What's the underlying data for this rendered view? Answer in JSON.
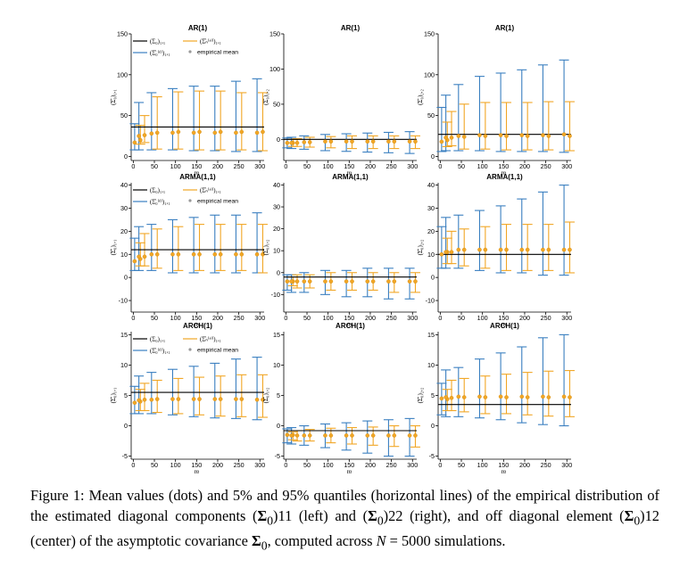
{
  "caption": {
    "label": "Figure 1:",
    "part1": "Mean values (dots) and 5% and 95% quantiles (horizontal lines) of the empirical distribution of the estimated diagonal components (",
    "sigma": "Σ",
    "sub0": "0",
    "sub11": ")11",
    "part2": " (left) and (",
    "sub22": ")22",
    "part3": " (right), and off diagonal element (",
    "sub12": ")12",
    "part4": " (center) of the asymptotic covariance ",
    "part5": ", computed across ",
    "N": "N",
    "part6": " = 5000 simulations."
  },
  "colors": {
    "blue": "#3a7fc0",
    "orange": "#f1a625",
    "black": "#000000",
    "dot": "#f1a625"
  },
  "legend": {
    "true": "(Σ₀)₁,₁",
    "d": "(Σ̂₀⁽ᵈ⁾)₁,₁",
    "al": "(Σ̂ₙ⁽ᵃˡ⁾)₁,₁",
    "mean": "empirical mean"
  },
  "xlabel": "m",
  "chart_data": [
    {
      "type": "errorbar",
      "title": "AR(1)",
      "ylabel": "(Σ̂₀)₁,₁",
      "ylim": [
        -5,
        150
      ],
      "yticks": [
        0,
        50,
        100,
        150
      ],
      "true_value": 36,
      "x": [
        10,
        20,
        50,
        100,
        150,
        200,
        250,
        300
      ],
      "blue": {
        "q05": [
          8,
          8,
          8,
          8,
          7,
          7,
          6,
          6
        ],
        "q95": [
          40,
          66,
          78,
          83,
          86,
          86,
          92,
          95
        ],
        "mean": [
          17,
          25,
          28,
          29,
          29,
          29,
          29,
          29
        ]
      },
      "orange": {
        "q05": [
          15,
          17,
          9,
          9,
          8,
          8,
          8,
          7
        ],
        "q95": [
          38,
          50,
          73,
          79,
          80,
          80,
          78,
          78
        ],
        "mean": [
          20,
          26,
          29,
          30,
          30,
          30,
          30,
          30
        ]
      }
    },
    {
      "type": "errorbar",
      "title": "AR(1)",
      "ylabel": "(Σ̂₀)₁,₂",
      "ylim": [
        -30,
        150
      ],
      "yticks": [
        0,
        50,
        100,
        150
      ],
      "true_value": 0,
      "x": [
        10,
        20,
        50,
        100,
        150,
        200,
        250,
        300
      ],
      "blue": {
        "q05": [
          -12,
          -13,
          -14,
          -16,
          -17,
          -18,
          -19,
          -20
        ],
        "q95": [
          2,
          3,
          5,
          7,
          8,
          9,
          10,
          11
        ],
        "mean": [
          -5,
          -5,
          -4,
          -3,
          -3,
          -3,
          -3,
          -3
        ]
      },
      "orange": {
        "q05": [
          -10,
          -10,
          -11,
          -12,
          -13,
          -13,
          -13,
          -13
        ],
        "q95": [
          0,
          1,
          3,
          4,
          5,
          5,
          5,
          5
        ],
        "mean": [
          -5,
          -5,
          -4,
          -3,
          -3,
          -3,
          -3,
          -3
        ]
      }
    },
    {
      "type": "errorbar",
      "title": "AR(1)",
      "ylabel": "(Σ̂₀)₂,₂",
      "ylim": [
        -5,
        150
      ],
      "yticks": [
        0,
        50,
        100,
        150
      ],
      "true_value": 27,
      "x": [
        10,
        20,
        50,
        100,
        150,
        200,
        250,
        300
      ],
      "blue": {
        "q05": [
          6,
          7,
          7,
          7,
          6,
          6,
          6,
          5
        ],
        "q95": [
          60,
          75,
          88,
          98,
          102,
          106,
          112,
          118
        ],
        "mean": [
          18,
          23,
          25,
          26,
          26,
          26,
          26,
          27
        ]
      },
      "orange": {
        "q05": [
          12,
          13,
          9,
          9,
          8,
          8,
          8,
          7
        ],
        "q95": [
          42,
          55,
          64,
          66,
          66,
          66,
          67,
          67
        ],
        "mean": [
          20,
          23,
          24,
          25,
          25,
          25,
          25,
          25
        ]
      }
    },
    {
      "type": "errorbar",
      "title": "ARMA(1,1)",
      "ylabel": "(Σ̂₀)₁,₁",
      "ylim": [
        -15,
        41
      ],
      "yticks": [
        -10,
        0,
        10,
        20,
        30,
        40
      ],
      "true_value": 12,
      "x": [
        10,
        20,
        50,
        100,
        150,
        200,
        250,
        300
      ],
      "blue": {
        "q05": [
          3,
          3,
          3,
          2,
          2,
          2,
          2,
          2
        ],
        "q95": [
          17,
          22,
          23,
          25,
          26,
          27,
          27,
          28
        ],
        "mean": [
          7,
          9,
          10,
          10,
          10,
          10,
          10,
          10
        ]
      },
      "orange": {
        "q05": [
          5,
          5,
          4,
          3,
          3,
          3,
          3,
          2
        ],
        "q95": [
          15,
          19,
          21,
          22,
          23,
          23,
          23,
          23
        ],
        "mean": [
          8,
          9,
          10,
          10,
          10,
          10,
          10,
          10
        ]
      }
    },
    {
      "type": "errorbar",
      "title": "ARMA(1,1)",
      "ylabel": "(Σ̂₀)₁,₂",
      "ylim": [
        -18,
        41
      ],
      "yticks": [
        -10,
        0,
        10,
        20,
        30,
        40
      ],
      "true_value": -2,
      "x": [
        10,
        20,
        50,
        100,
        150,
        200,
        250,
        300
      ],
      "blue": {
        "q05": [
          -8,
          -9,
          -9,
          -10,
          -11,
          -11,
          -12,
          -12
        ],
        "q95": [
          -1,
          -1,
          0,
          1,
          1,
          2,
          2,
          2
        ],
        "mean": [
          -4,
          -4,
          -4,
          -4,
          -4,
          -4,
          -4,
          -4
        ]
      },
      "orange": {
        "q05": [
          -6,
          -7,
          -7,
          -8,
          -8,
          -8,
          -9,
          -9
        ],
        "q95": [
          -2,
          -1,
          -1,
          0,
          0,
          0,
          0,
          0
        ],
        "mean": [
          -4,
          -4,
          -4,
          -4,
          -4,
          -4,
          -4,
          -4
        ]
      }
    },
    {
      "type": "errorbar",
      "title": "ARMA(1,1)",
      "ylabel": "(Σ̂₀)₂,₂",
      "ylim": [
        -15,
        41
      ],
      "yticks": [
        -10,
        0,
        10,
        20,
        30,
        40
      ],
      "true_value": 10,
      "x": [
        10,
        20,
        50,
        100,
        150,
        200,
        250,
        300
      ],
      "blue": {
        "q05": [
          4,
          4,
          4,
          3,
          2,
          2,
          1,
          1
        ],
        "q95": [
          22,
          26,
          27,
          29,
          31,
          34,
          37,
          40
        ],
        "mean": [
          10,
          11,
          12,
          12,
          12,
          12,
          12,
          12
        ]
      },
      "orange": {
        "q05": [
          6,
          6,
          5,
          4,
          3,
          3,
          3,
          2
        ],
        "q95": [
          17,
          20,
          21,
          22,
          23,
          23,
          23,
          24
        ],
        "mean": [
          11,
          11,
          12,
          12,
          12,
          12,
          12,
          12
        ]
      }
    },
    {
      "type": "errorbar",
      "title": "ARCH(1)",
      "ylabel": "(Σ̂₀)₁,₁",
      "ylim": [
        -5.5,
        15.5
      ],
      "yticks": [
        -5,
        0,
        5,
        10,
        15
      ],
      "true_value": 5.5,
      "x": [
        10,
        20,
        50,
        100,
        150,
        200,
        250,
        300
      ],
      "blue": {
        "q05": [
          2,
          2,
          2,
          1.8,
          1.5,
          1.3,
          1.2,
          1
        ],
        "q95": [
          6.5,
          8.2,
          8.8,
          9.3,
          9.8,
          10.3,
          11,
          11.3
        ],
        "mean": [
          3.8,
          4.2,
          4.3,
          4.4,
          4.4,
          4.4,
          4.4,
          4.3
        ]
      },
      "orange": {
        "q05": [
          2.5,
          2.5,
          2.2,
          2,
          1.8,
          1.6,
          1.5,
          1.4
        ],
        "q95": [
          6,
          7,
          7.5,
          7.8,
          8,
          8.2,
          8.4,
          8.4
        ],
        "mean": [
          4,
          4.3,
          4.4,
          4.4,
          4.4,
          4.4,
          4.4,
          4.3
        ]
      }
    },
    {
      "type": "errorbar",
      "title": "ARCH(1)",
      "ylabel": "(Σ̂₀)₁,₂",
      "ylim": [
        -5.5,
        15.5
      ],
      "yticks": [
        -5,
        0,
        5,
        10,
        15
      ],
      "true_value": -0.8,
      "x": [
        10,
        20,
        50,
        100,
        150,
        200,
        250,
        300
      ],
      "blue": {
        "q05": [
          -2.8,
          -3,
          -3.2,
          -3.6,
          -4,
          -4.5,
          -5,
          -5
        ],
        "q95": [
          -0.5,
          -0.3,
          0,
          0.3,
          0.5,
          0.8,
          1,
          1.2
        ],
        "mean": [
          -1.5,
          -1.6,
          -1.6,
          -1.6,
          -1.6,
          -1.6,
          -1.6,
          -1.6
        ]
      },
      "orange": {
        "q05": [
          -2.3,
          -2.5,
          -2.5,
          -2.8,
          -3,
          -3.2,
          -3.4,
          -3.5
        ],
        "q95": [
          -1,
          -0.8,
          -0.6,
          -0.4,
          -0.3,
          -0.2,
          0,
          0
        ],
        "mean": [
          -1.5,
          -1.6,
          -1.6,
          -1.6,
          -1.6,
          -1.6,
          -1.6,
          -1.6
        ]
      }
    },
    {
      "type": "errorbar",
      "title": "ARCH(1)",
      "ylabel": "(Σ̂₀)₂,₂",
      "ylim": [
        -5.5,
        15.5
      ],
      "yticks": [
        -5,
        0,
        5,
        10,
        15
      ],
      "true_value": 3.5,
      "x": [
        10,
        20,
        50,
        100,
        150,
        200,
        250,
        300
      ],
      "blue": {
        "q05": [
          1.8,
          1.5,
          1.5,
          1.3,
          1,
          0.5,
          0.2,
          0
        ],
        "q95": [
          7,
          9.2,
          9.6,
          11,
          12,
          13,
          14.5,
          15
        ],
        "mean": [
          4.5,
          4.7,
          4.8,
          4.8,
          4.8,
          4.8,
          4.8,
          4.8
        ]
      },
      "orange": {
        "q05": [
          2.5,
          2.5,
          2.3,
          2,
          2,
          1.8,
          1.6,
          1.5
        ],
        "q95": [
          6,
          7.5,
          7.8,
          8.2,
          8.5,
          8.8,
          9,
          9.1
        ],
        "mean": [
          4.4,
          4.6,
          4.7,
          4.7,
          4.7,
          4.7,
          4.7,
          4.7
        ]
      }
    }
  ]
}
